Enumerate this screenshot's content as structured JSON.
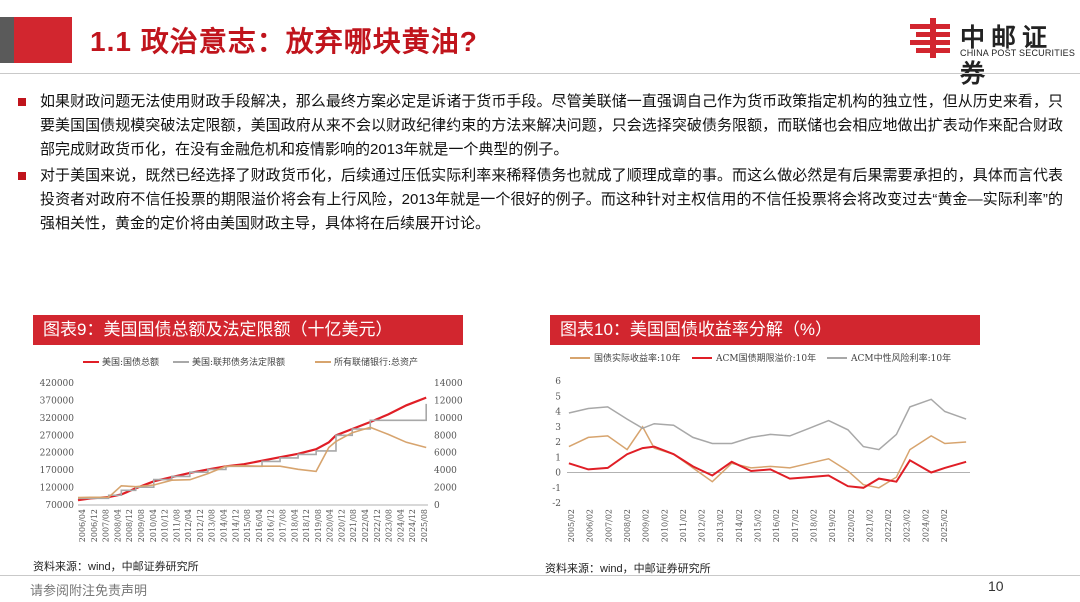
{
  "header": {
    "title": "1.1 政治意志：放弃哪块黄油?",
    "logo_cn": "中邮证券",
    "logo_en": "CHINA POST SECURITIES",
    "logo_color": "#d2262f"
  },
  "bullets": [
    "如果财政问题无法使用财政手段解决，那么最终方案必定是诉诸于货币手段。尽管美联储一直强调自己作为货币政策指定机构的独立性，但从历史来看，只要美国国债规模突破法定限额，美国政府从来不会以财政纪律约束的方法来解决问题，只会选择突破债务限额，而联储也会相应地做出扩表动作来配合财政部完成财政货币化，在没有金融危机和疫情影响的2013年就是一个典型的例子。",
    "对于美国来说，既然已经选择了财政货币化，后续通过压低实际利率来稀释债务也就成了顺理成章的事。而这么做必然是有后果需要承担的，具体而言代表投资者对政府不信任投票的期限溢价将会有上行风险，2013年就是一个很好的例子。而这种针对主权信用的不信任投票将会将改变过去“黄金—实际利率”的强相关性，黄金的定价将由美国财政主导，具体将在后续展开讨论。"
  ],
  "chart1": {
    "header": "图表9：美国国债总额及法定限额（十亿美元）",
    "source": "资料来源：wind，中邮证券研究所",
    "legend": [
      "美国:国债总额",
      "美国:联邦债务法定限额",
      "所有联储银行:总资产"
    ],
    "y_left_ticks": [
      "420000",
      "370000",
      "320000",
      "270000",
      "220000",
      "170000",
      "120000",
      "70000"
    ],
    "y_right_ticks": [
      "14000",
      "12000",
      "10000",
      "8000",
      "6000",
      "4000",
      "2000",
      "0"
    ],
    "x_ticks": [
      "2006/04",
      "2006/12",
      "2007/08",
      "2008/04",
      "2008/12",
      "2009/08",
      "2010/04",
      "2010/12",
      "2011/08",
      "2012/04",
      "2012/12",
      "2013/08",
      "2014/04",
      "2014/12",
      "2015/08",
      "2016/04",
      "2016/12",
      "2017/08",
      "2018/04",
      "2018/12",
      "2019/08",
      "2020/04",
      "2020/12",
      "2021/08",
      "2022/04",
      "2022/12",
      "2023/08",
      "2024/04",
      "2024/12",
      "2025/08"
    ]
  },
  "chart2": {
    "header": "图表10：美国国债收益率分解（%）",
    "source": "资料来源：wind，中邮证券研究所",
    "legend": [
      "国债实际收益率:10年",
      "ACM国债期限溢价:10年",
      "ACM中性风险利率:10年"
    ],
    "y_ticks": [
      "6",
      "5",
      "4",
      "3",
      "2",
      "1",
      "0",
      "-1",
      "-2"
    ],
    "x_ticks": [
      "2005/02",
      "2006/02",
      "2007/02",
      "2008/02",
      "2009/02",
      "2010/02",
      "2011/02",
      "2012/02",
      "2013/02",
      "2014/02",
      "2015/02",
      "2016/02",
      "2017/02",
      "2018/02",
      "2019/02",
      "2020/02",
      "2021/02",
      "2022/02",
      "2023/02",
      "2024/02",
      "2025/02"
    ]
  },
  "chart_data": [
    {
      "type": "line",
      "x": [
        2006.3,
        2007.0,
        2008.0,
        2008.7,
        2009.5,
        2010.5,
        2011.5,
        2012.5,
        2013.5,
        2014.5,
        2015.5,
        2016.5,
        2017.5,
        2018.5,
        2019.5,
        2020.2,
        2020.6,
        2021.5,
        2022.5,
        2023.5,
        2024.5,
        2025.6
      ],
      "series": [
        {
          "name": "美国:国债总额",
          "axis": "left",
          "color": "#e01e26",
          "values": [
            84000,
            89000,
            93000,
            100000,
            118000,
            138000,
            150000,
            162000,
            172000,
            181000,
            187000,
            197000,
            207000,
            217000,
            230000,
            250000,
            270000,
            288000,
            308000,
            330000,
            356000,
            378000
          ]
        },
        {
          "name": "美国:联邦债务法定限额",
          "axis": "left",
          "color": "#a8a8a8",
          "values": [
            89000,
            89000,
            98000,
            112000,
            121000,
            143000,
            152000,
            164000,
            172000,
            181000,
            181000,
            195000,
            205000,
            215000,
            225000,
            225000,
            270000,
            288000,
            313000,
            313000,
            313000,
            360000
          ]
        },
        {
          "name": "所有联储银行:总资产",
          "axis": "right",
          "color": "#d7a46e",
          "values": [
            850,
            880,
            900,
            2200,
            2100,
            2300,
            2850,
            2900,
            3600,
            4450,
            4500,
            4450,
            4450,
            4100,
            3850,
            6600,
            7300,
            8300,
            8900,
            8100,
            7200,
            6600
          ]
        }
      ],
      "ylim_left": [
        70000,
        420000
      ],
      "ylim_right": [
        0,
        14000
      ]
    },
    {
      "type": "line",
      "x": [
        2005.1,
        2006.1,
        2007.1,
        2008.1,
        2008.9,
        2009.5,
        2010.5,
        2011.5,
        2012.5,
        2013.5,
        2014.5,
        2015.5,
        2016.5,
        2017.5,
        2018.5,
        2019.5,
        2020.3,
        2021.1,
        2022.0,
        2022.7,
        2023.8,
        2024.5,
        2025.6
      ],
      "series": [
        {
          "name": "国债实际收益率:10年",
          "color": "#d7a46e",
          "values": [
            1.7,
            2.3,
            2.4,
            1.5,
            3.0,
            1.6,
            1.2,
            0.3,
            -0.6,
            0.6,
            0.3,
            0.4,
            0.3,
            0.6,
            0.9,
            0.1,
            -0.8,
            -1.0,
            -0.3,
            1.5,
            2.4,
            1.9,
            2.0
          ]
        },
        {
          "name": "ACM国债期限溢价:10年",
          "color": "#e01e26",
          "values": [
            0.6,
            0.2,
            0.3,
            1.2,
            1.6,
            1.7,
            1.2,
            0.4,
            -0.2,
            0.7,
            0.1,
            0.2,
            -0.4,
            -0.3,
            -0.2,
            -0.9,
            -1.0,
            -0.4,
            -0.6,
            0.8,
            0.0,
            0.3,
            0.7
          ]
        },
        {
          "name": "ACM中性风险利率:10年",
          "color": "#a8a8a8",
          "values": [
            3.9,
            4.2,
            4.3,
            3.5,
            2.9,
            3.2,
            3.1,
            2.3,
            1.9,
            1.9,
            2.3,
            2.5,
            2.4,
            2.9,
            3.4,
            2.8,
            1.7,
            1.5,
            2.5,
            4.3,
            4.8,
            4.0,
            3.5
          ]
        }
      ],
      "ylim": [
        -2,
        6
      ]
    }
  ],
  "footer": {
    "disclaimer": "请参阅附注免责声明",
    "page": "10"
  }
}
